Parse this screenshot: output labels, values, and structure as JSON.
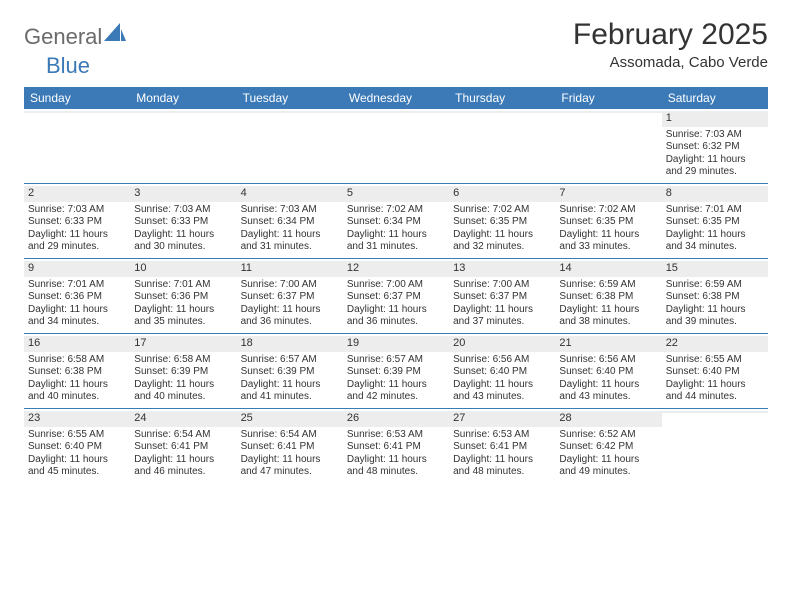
{
  "brand": {
    "part1": "General",
    "part2": "Blue"
  },
  "title": "February 2025",
  "location": "Assomada, Cabo Verde",
  "colors": {
    "header_bg": "#3b79b7",
    "daynum_bg": "#ededed",
    "text": "#333333",
    "logo_gray": "#6b6b6b",
    "logo_blue": "#3b79b7",
    "page_bg": "#ffffff"
  },
  "day_names": [
    "Sunday",
    "Monday",
    "Tuesday",
    "Wednesday",
    "Thursday",
    "Friday",
    "Saturday"
  ],
  "weeks": [
    [
      {
        "n": "",
        "sr": "",
        "ss": "",
        "d1": "",
        "d2": ""
      },
      {
        "n": "",
        "sr": "",
        "ss": "",
        "d1": "",
        "d2": ""
      },
      {
        "n": "",
        "sr": "",
        "ss": "",
        "d1": "",
        "d2": ""
      },
      {
        "n": "",
        "sr": "",
        "ss": "",
        "d1": "",
        "d2": ""
      },
      {
        "n": "",
        "sr": "",
        "ss": "",
        "d1": "",
        "d2": ""
      },
      {
        "n": "",
        "sr": "",
        "ss": "",
        "d1": "",
        "d2": ""
      },
      {
        "n": "1",
        "sr": "Sunrise: 7:03 AM",
        "ss": "Sunset: 6:32 PM",
        "d1": "Daylight: 11 hours",
        "d2": "and 29 minutes."
      }
    ],
    [
      {
        "n": "2",
        "sr": "Sunrise: 7:03 AM",
        "ss": "Sunset: 6:33 PM",
        "d1": "Daylight: 11 hours",
        "d2": "and 29 minutes."
      },
      {
        "n": "3",
        "sr": "Sunrise: 7:03 AM",
        "ss": "Sunset: 6:33 PM",
        "d1": "Daylight: 11 hours",
        "d2": "and 30 minutes."
      },
      {
        "n": "4",
        "sr": "Sunrise: 7:03 AM",
        "ss": "Sunset: 6:34 PM",
        "d1": "Daylight: 11 hours",
        "d2": "and 31 minutes."
      },
      {
        "n": "5",
        "sr": "Sunrise: 7:02 AM",
        "ss": "Sunset: 6:34 PM",
        "d1": "Daylight: 11 hours",
        "d2": "and 31 minutes."
      },
      {
        "n": "6",
        "sr": "Sunrise: 7:02 AM",
        "ss": "Sunset: 6:35 PM",
        "d1": "Daylight: 11 hours",
        "d2": "and 32 minutes."
      },
      {
        "n": "7",
        "sr": "Sunrise: 7:02 AM",
        "ss": "Sunset: 6:35 PM",
        "d1": "Daylight: 11 hours",
        "d2": "and 33 minutes."
      },
      {
        "n": "8",
        "sr": "Sunrise: 7:01 AM",
        "ss": "Sunset: 6:35 PM",
        "d1": "Daylight: 11 hours",
        "d2": "and 34 minutes."
      }
    ],
    [
      {
        "n": "9",
        "sr": "Sunrise: 7:01 AM",
        "ss": "Sunset: 6:36 PM",
        "d1": "Daylight: 11 hours",
        "d2": "and 34 minutes."
      },
      {
        "n": "10",
        "sr": "Sunrise: 7:01 AM",
        "ss": "Sunset: 6:36 PM",
        "d1": "Daylight: 11 hours",
        "d2": "and 35 minutes."
      },
      {
        "n": "11",
        "sr": "Sunrise: 7:00 AM",
        "ss": "Sunset: 6:37 PM",
        "d1": "Daylight: 11 hours",
        "d2": "and 36 minutes."
      },
      {
        "n": "12",
        "sr": "Sunrise: 7:00 AM",
        "ss": "Sunset: 6:37 PM",
        "d1": "Daylight: 11 hours",
        "d2": "and 36 minutes."
      },
      {
        "n": "13",
        "sr": "Sunrise: 7:00 AM",
        "ss": "Sunset: 6:37 PM",
        "d1": "Daylight: 11 hours",
        "d2": "and 37 minutes."
      },
      {
        "n": "14",
        "sr": "Sunrise: 6:59 AM",
        "ss": "Sunset: 6:38 PM",
        "d1": "Daylight: 11 hours",
        "d2": "and 38 minutes."
      },
      {
        "n": "15",
        "sr": "Sunrise: 6:59 AM",
        "ss": "Sunset: 6:38 PM",
        "d1": "Daylight: 11 hours",
        "d2": "and 39 minutes."
      }
    ],
    [
      {
        "n": "16",
        "sr": "Sunrise: 6:58 AM",
        "ss": "Sunset: 6:38 PM",
        "d1": "Daylight: 11 hours",
        "d2": "and 40 minutes."
      },
      {
        "n": "17",
        "sr": "Sunrise: 6:58 AM",
        "ss": "Sunset: 6:39 PM",
        "d1": "Daylight: 11 hours",
        "d2": "and 40 minutes."
      },
      {
        "n": "18",
        "sr": "Sunrise: 6:57 AM",
        "ss": "Sunset: 6:39 PM",
        "d1": "Daylight: 11 hours",
        "d2": "and 41 minutes."
      },
      {
        "n": "19",
        "sr": "Sunrise: 6:57 AM",
        "ss": "Sunset: 6:39 PM",
        "d1": "Daylight: 11 hours",
        "d2": "and 42 minutes."
      },
      {
        "n": "20",
        "sr": "Sunrise: 6:56 AM",
        "ss": "Sunset: 6:40 PM",
        "d1": "Daylight: 11 hours",
        "d2": "and 43 minutes."
      },
      {
        "n": "21",
        "sr": "Sunrise: 6:56 AM",
        "ss": "Sunset: 6:40 PM",
        "d1": "Daylight: 11 hours",
        "d2": "and 43 minutes."
      },
      {
        "n": "22",
        "sr": "Sunrise: 6:55 AM",
        "ss": "Sunset: 6:40 PM",
        "d1": "Daylight: 11 hours",
        "d2": "and 44 minutes."
      }
    ],
    [
      {
        "n": "23",
        "sr": "Sunrise: 6:55 AM",
        "ss": "Sunset: 6:40 PM",
        "d1": "Daylight: 11 hours",
        "d2": "and 45 minutes."
      },
      {
        "n": "24",
        "sr": "Sunrise: 6:54 AM",
        "ss": "Sunset: 6:41 PM",
        "d1": "Daylight: 11 hours",
        "d2": "and 46 minutes."
      },
      {
        "n": "25",
        "sr": "Sunrise: 6:54 AM",
        "ss": "Sunset: 6:41 PM",
        "d1": "Daylight: 11 hours",
        "d2": "and 47 minutes."
      },
      {
        "n": "26",
        "sr": "Sunrise: 6:53 AM",
        "ss": "Sunset: 6:41 PM",
        "d1": "Daylight: 11 hours",
        "d2": "and 48 minutes."
      },
      {
        "n": "27",
        "sr": "Sunrise: 6:53 AM",
        "ss": "Sunset: 6:41 PM",
        "d1": "Daylight: 11 hours",
        "d2": "and 48 minutes."
      },
      {
        "n": "28",
        "sr": "Sunrise: 6:52 AM",
        "ss": "Sunset: 6:42 PM",
        "d1": "Daylight: 11 hours",
        "d2": "and 49 minutes."
      },
      {
        "n": "",
        "sr": "",
        "ss": "",
        "d1": "",
        "d2": ""
      }
    ]
  ]
}
